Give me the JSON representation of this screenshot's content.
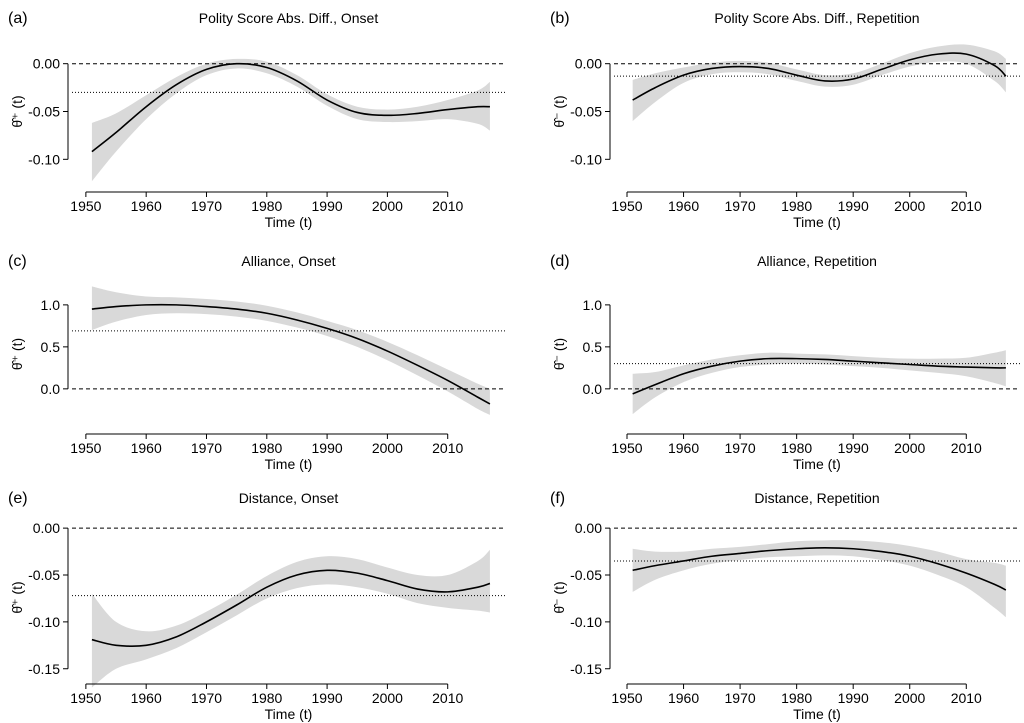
{
  "chart_data": [
    {
      "type": "line",
      "panel": "(a)",
      "title": "Polity Score Abs. Diff., Onset",
      "xlabel": "Time (t)",
      "ylabel": "θ̂⁺ (t)",
      "x": [
        1951,
        1955,
        1960,
        1965,
        1970,
        1975,
        1980,
        1985,
        1990,
        1995,
        2000,
        2005,
        2010,
        2015,
        2017
      ],
      "values": [
        -0.092,
        -0.072,
        -0.045,
        -0.022,
        -0.006,
        0.0,
        -0.004,
        -0.018,
        -0.038,
        -0.051,
        -0.054,
        -0.052,
        -0.048,
        -0.045,
        -0.045
      ],
      "lower": [
        -0.123,
        -0.092,
        -0.058,
        -0.031,
        -0.012,
        -0.005,
        -0.01,
        -0.024,
        -0.044,
        -0.058,
        -0.061,
        -0.06,
        -0.058,
        -0.063,
        -0.07
      ],
      "upper": [
        -0.062,
        -0.052,
        -0.033,
        -0.014,
        0.0,
        0.005,
        0.002,
        -0.012,
        -0.032,
        -0.045,
        -0.048,
        -0.045,
        -0.038,
        -0.028,
        -0.019
      ],
      "color": "#000000",
      "band_color": "#d9d9d9",
      "hlines": [
        {
          "value": 0,
          "style": "dashed"
        },
        {
          "value": -0.03,
          "style": "dotted"
        }
      ],
      "xlim": [
        1947.7,
        2019.5
      ],
      "xticks": [
        1950,
        1960,
        1970,
        1980,
        1990,
        2000,
        2010
      ],
      "ylim": [
        -0.13,
        0.03
      ],
      "yticks": [
        {
          "value": 0,
          "label": "0.00"
        },
        {
          "value": -0.05,
          "label": "-0.05"
        },
        {
          "value": -0.1,
          "label": "-0.10"
        }
      ]
    },
    {
      "type": "line",
      "panel": "(b)",
      "title": "Polity Score Abs. Diff., Repetition",
      "xlabel": "Time (t)",
      "ylabel": "θ̂⁻ (t)",
      "x": [
        1951,
        1955,
        1960,
        1965,
        1970,
        1975,
        1980,
        1985,
        1990,
        1995,
        2000,
        2005,
        2010,
        2015,
        2017
      ],
      "values": [
        -0.038,
        -0.025,
        -0.012,
        -0.005,
        -0.003,
        -0.005,
        -0.012,
        -0.018,
        -0.016,
        -0.006,
        0.004,
        0.01,
        0.01,
        -0.002,
        -0.013
      ],
      "lower": [
        -0.06,
        -0.04,
        -0.02,
        -0.011,
        -0.009,
        -0.011,
        -0.018,
        -0.024,
        -0.022,
        -0.012,
        -0.003,
        0.002,
        0.0,
        -0.018,
        -0.03
      ],
      "upper": [
        -0.017,
        -0.01,
        -0.004,
        0.001,
        0.003,
        0.001,
        -0.006,
        -0.012,
        -0.01,
        0.0,
        0.011,
        0.018,
        0.02,
        0.013,
        0.005
      ],
      "color": "#000000",
      "band_color": "#d9d9d9",
      "hlines": [
        {
          "value": 0,
          "style": "dashed"
        },
        {
          "value": -0.013,
          "style": "dotted"
        }
      ],
      "xlim": [
        1947.7,
        2019.5
      ],
      "xticks": [
        1950,
        1960,
        1970,
        1980,
        1990,
        2000,
        2010
      ],
      "ylim": [
        -0.13,
        0.03
      ],
      "yticks": [
        {
          "value": 0,
          "label": "0.00"
        },
        {
          "value": -0.05,
          "label": "-0.05"
        },
        {
          "value": -0.1,
          "label": "-0.10"
        }
      ]
    },
    {
      "type": "line",
      "panel": "(c)",
      "title": "Alliance, Onset",
      "xlabel": "Time (t)",
      "ylabel": "θ̂⁺ (t)",
      "x": [
        1951,
        1955,
        1960,
        1965,
        1970,
        1975,
        1980,
        1985,
        1990,
        1995,
        2000,
        2005,
        2010,
        2015,
        2017
      ],
      "values": [
        0.95,
        0.98,
        1.0,
        1.0,
        0.98,
        0.95,
        0.9,
        0.82,
        0.72,
        0.6,
        0.45,
        0.28,
        0.1,
        -0.1,
        -0.18
      ],
      "lower": [
        0.7,
        0.8,
        0.88,
        0.9,
        0.89,
        0.86,
        0.81,
        0.73,
        0.63,
        0.5,
        0.34,
        0.16,
        -0.03,
        -0.24,
        -0.31
      ],
      "upper": [
        1.22,
        1.15,
        1.1,
        1.09,
        1.07,
        1.04,
        0.99,
        0.91,
        0.81,
        0.7,
        0.56,
        0.4,
        0.23,
        0.06,
        0.0
      ],
      "color": "#000000",
      "band_color": "#d9d9d9",
      "hlines": [
        {
          "value": 0,
          "style": "dashed"
        },
        {
          "value": 0.69,
          "style": "dotted"
        }
      ],
      "xlim": [
        1947.7,
        2019.5
      ],
      "xticks": [
        1950,
        1960,
        1970,
        1980,
        1990,
        2000,
        2010
      ],
      "ylim": [
        -0.49,
        1.32
      ],
      "yticks": [
        {
          "value": 1,
          "label": "1.0"
        },
        {
          "value": 0.5,
          "label": "0.5"
        },
        {
          "value": 0,
          "label": "0.0"
        }
      ]
    },
    {
      "type": "line",
      "panel": "(d)",
      "title": "Alliance, Repetition",
      "xlabel": "Time (t)",
      "ylabel": "θ̂⁻ (t)",
      "x": [
        1951,
        1955,
        1960,
        1965,
        1970,
        1975,
        1980,
        1985,
        1990,
        1995,
        2000,
        2005,
        2010,
        2015,
        2017
      ],
      "values": [
        -0.06,
        0.05,
        0.18,
        0.27,
        0.33,
        0.36,
        0.36,
        0.35,
        0.33,
        0.31,
        0.29,
        0.27,
        0.26,
        0.25,
        0.25
      ],
      "lower": [
        -0.3,
        -0.1,
        0.08,
        0.19,
        0.26,
        0.29,
        0.3,
        0.29,
        0.27,
        0.25,
        0.22,
        0.19,
        0.15,
        0.07,
        0.03
      ],
      "upper": [
        0.18,
        0.2,
        0.28,
        0.35,
        0.4,
        0.43,
        0.42,
        0.41,
        0.39,
        0.37,
        0.36,
        0.36,
        0.37,
        0.43,
        0.46
      ],
      "color": "#000000",
      "band_color": "#d9d9d9",
      "hlines": [
        {
          "value": 0,
          "style": "dashed"
        },
        {
          "value": 0.3,
          "style": "dotted"
        }
      ],
      "xlim": [
        1947.7,
        2019.5
      ],
      "xticks": [
        1950,
        1960,
        1970,
        1980,
        1990,
        2000,
        2010
      ],
      "ylim": [
        -0.49,
        1.32
      ],
      "yticks": [
        {
          "value": 1,
          "label": "1.0"
        },
        {
          "value": 0.5,
          "label": "0.5"
        },
        {
          "value": 0,
          "label": "0.0"
        }
      ]
    },
    {
      "type": "line",
      "panel": "(e)",
      "title": "Distance, Onset",
      "xlabel": "Time (t)",
      "ylabel": "θ̂⁺ (t)",
      "x": [
        1951,
        1955,
        1960,
        1965,
        1970,
        1975,
        1980,
        1985,
        1990,
        1995,
        2000,
        2005,
        2010,
        2015,
        2017
      ],
      "values": [
        -0.119,
        -0.125,
        -0.125,
        -0.116,
        -0.1,
        -0.082,
        -0.063,
        -0.05,
        -0.045,
        -0.048,
        -0.056,
        -0.065,
        -0.068,
        -0.063,
        -0.059
      ],
      "lower": [
        -0.17,
        -0.15,
        -0.14,
        -0.128,
        -0.111,
        -0.093,
        -0.075,
        -0.064,
        -0.06,
        -0.063,
        -0.07,
        -0.08,
        -0.085,
        -0.088,
        -0.09
      ],
      "upper": [
        -0.07,
        -0.1,
        -0.11,
        -0.104,
        -0.089,
        -0.071,
        -0.051,
        -0.036,
        -0.03,
        -0.033,
        -0.042,
        -0.05,
        -0.05,
        -0.035,
        -0.023
      ],
      "color": "#000000",
      "band_color": "#d9d9d9",
      "hlines": [
        {
          "value": 0,
          "style": "dashed"
        },
        {
          "value": -0.072,
          "style": "dotted"
        }
      ],
      "xlim": [
        1947.7,
        2019.5
      ],
      "xticks": [
        1950,
        1960,
        1970,
        1980,
        1990,
        2000,
        2010
      ],
      "ylim": [
        -0.162,
        0.014
      ],
      "yticks": [
        {
          "value": 0,
          "label": "0.00"
        },
        {
          "value": -0.05,
          "label": "-0.05"
        },
        {
          "value": -0.1,
          "label": "-0.10"
        },
        {
          "value": -0.15,
          "label": "-0.15"
        }
      ]
    },
    {
      "type": "line",
      "panel": "(f)",
      "title": "Distance, Repetition",
      "xlabel": "Time (t)",
      "ylabel": "θ̂⁻ (t)",
      "x": [
        1951,
        1955,
        1960,
        1965,
        1970,
        1975,
        1980,
        1985,
        1990,
        1995,
        2000,
        2005,
        2010,
        2015,
        2017
      ],
      "values": [
        -0.045,
        -0.04,
        -0.035,
        -0.03,
        -0.027,
        -0.024,
        -0.022,
        -0.021,
        -0.022,
        -0.025,
        -0.03,
        -0.038,
        -0.048,
        -0.06,
        -0.066
      ],
      "lower": [
        -0.068,
        -0.055,
        -0.045,
        -0.038,
        -0.034,
        -0.031,
        -0.03,
        -0.029,
        -0.03,
        -0.034,
        -0.04,
        -0.05,
        -0.063,
        -0.085,
        -0.095
      ],
      "upper": [
        -0.022,
        -0.025,
        -0.025,
        -0.022,
        -0.02,
        -0.017,
        -0.014,
        -0.013,
        -0.013,
        -0.015,
        -0.019,
        -0.025,
        -0.033,
        -0.037,
        -0.04
      ],
      "color": "#000000",
      "band_color": "#d9d9d9",
      "hlines": [
        {
          "value": 0,
          "style": "dashed"
        },
        {
          "value": -0.035,
          "style": "dotted"
        }
      ],
      "xlim": [
        1947.7,
        2019.5
      ],
      "xticks": [
        1950,
        1960,
        1970,
        1980,
        1990,
        2000,
        2010
      ],
      "ylim": [
        -0.162,
        0.014
      ],
      "yticks": [
        {
          "value": 0,
          "label": "0.00"
        },
        {
          "value": -0.05,
          "label": "-0.05"
        },
        {
          "value": -0.1,
          "label": "-0.10"
        },
        {
          "value": -0.15,
          "label": "-0.15"
        }
      ]
    }
  ]
}
